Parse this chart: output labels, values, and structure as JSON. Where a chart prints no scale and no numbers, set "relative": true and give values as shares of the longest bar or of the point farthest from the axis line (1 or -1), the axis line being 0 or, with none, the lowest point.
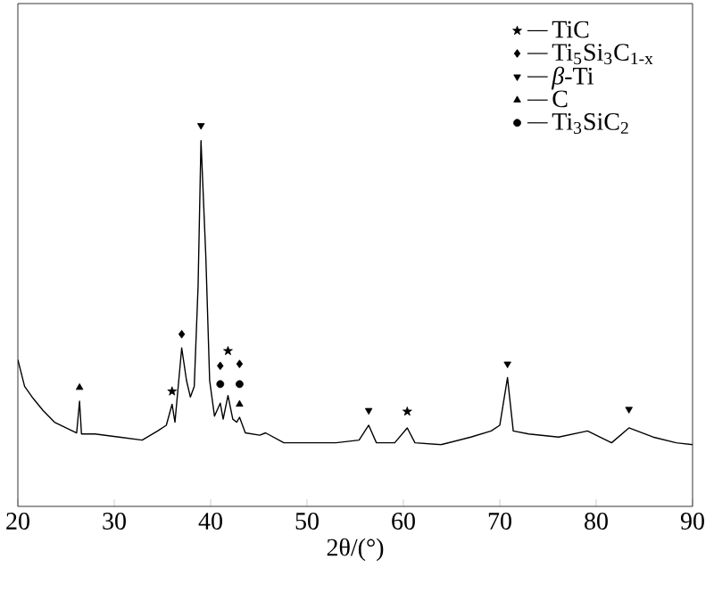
{
  "chart_data": {
    "type": "line",
    "relative": true,
    "xlabel": "2θ/(°)",
    "xlim": [
      20,
      90
    ],
    "xticks": [
      20,
      30,
      40,
      50,
      60,
      70,
      80,
      90
    ],
    "grid": false,
    "legend": "top right",
    "series": [
      {
        "type": "line",
        "color": "#000000",
        "marker": "none",
        "line_style": "solid",
        "x": [
          20,
          20.7,
          21.6,
          22.6,
          23.8,
          25.0,
          26.1,
          26.4,
          26.6,
          28.0,
          30.5,
          32.9,
          34.5,
          35.4,
          36.0,
          36.3,
          37.0,
          37.5,
          37.9,
          38.3,
          38.7,
          39.0,
          39.5,
          39.9,
          40.4,
          41.0,
          41.3,
          41.8,
          42.3,
          42.7,
          43.0,
          43.6,
          45.1,
          45.7,
          47.6,
          50.0,
          53.0,
          55.4,
          56.4,
          57.2,
          59.1,
          60.4,
          61.2,
          63.9,
          67.0,
          69.1,
          70.0,
          70.8,
          71.4,
          73.0,
          76.1,
          79.1,
          81.6,
          83.4,
          85.9,
          88.3,
          90.0
        ],
        "values": [
          0.385,
          0.315,
          0.283,
          0.252,
          0.221,
          0.206,
          0.193,
          0.276,
          0.19,
          0.19,
          0.182,
          0.174,
          0.198,
          0.213,
          0.268,
          0.221,
          0.416,
          0.33,
          0.287,
          0.315,
          0.58,
          0.96,
          0.657,
          0.33,
          0.237,
          0.271,
          0.229,
          0.291,
          0.229,
          0.221,
          0.234,
          0.193,
          0.187,
          0.193,
          0.167,
          0.167,
          0.167,
          0.174,
          0.213,
          0.167,
          0.167,
          0.206,
          0.167,
          0.162,
          0.182,
          0.198,
          0.213,
          0.338,
          0.198,
          0.19,
          0.182,
          0.198,
          0.167,
          0.206,
          0.182,
          0.167,
          0.162
        ]
      },
      {
        "type": "scatter",
        "name": "TiC",
        "color": "#000000",
        "marker": "star",
        "x": [
          36.0,
          41.8,
          60.4
        ],
        "values": [
          0.302,
          0.408,
          0.249
        ]
      },
      {
        "type": "scatter",
        "name": "Ti$_{5}$Si$_{3}$C$_{1-x}$",
        "color": "#000000",
        "marker": "diamond",
        "x": [
          37.0,
          41.0,
          43.0
        ],
        "values": [
          0.452,
          0.369,
          0.374
        ]
      },
      {
        "type": "scatter",
        "name": "*β*-Ti",
        "color": "#000000",
        "marker": "triangle-down",
        "x": [
          39.0,
          56.4,
          70.8,
          83.4
        ],
        "values": [
          1.0,
          0.252,
          0.374,
          0.255
        ]
      },
      {
        "type": "scatter",
        "name": "C",
        "color": "#000000",
        "marker": "triangle",
        "x": [
          26.4,
          43.0
        ],
        "values": [
          0.312,
          0.268
        ]
      },
      {
        "type": "scatter",
        "name": "Ti$_{3}$SiC$_{2}$",
        "color": "#000000",
        "marker": "circle",
        "x": [
          41.0,
          43.0
        ],
        "values": [
          0.321,
          0.321
        ]
      }
    ]
  }
}
